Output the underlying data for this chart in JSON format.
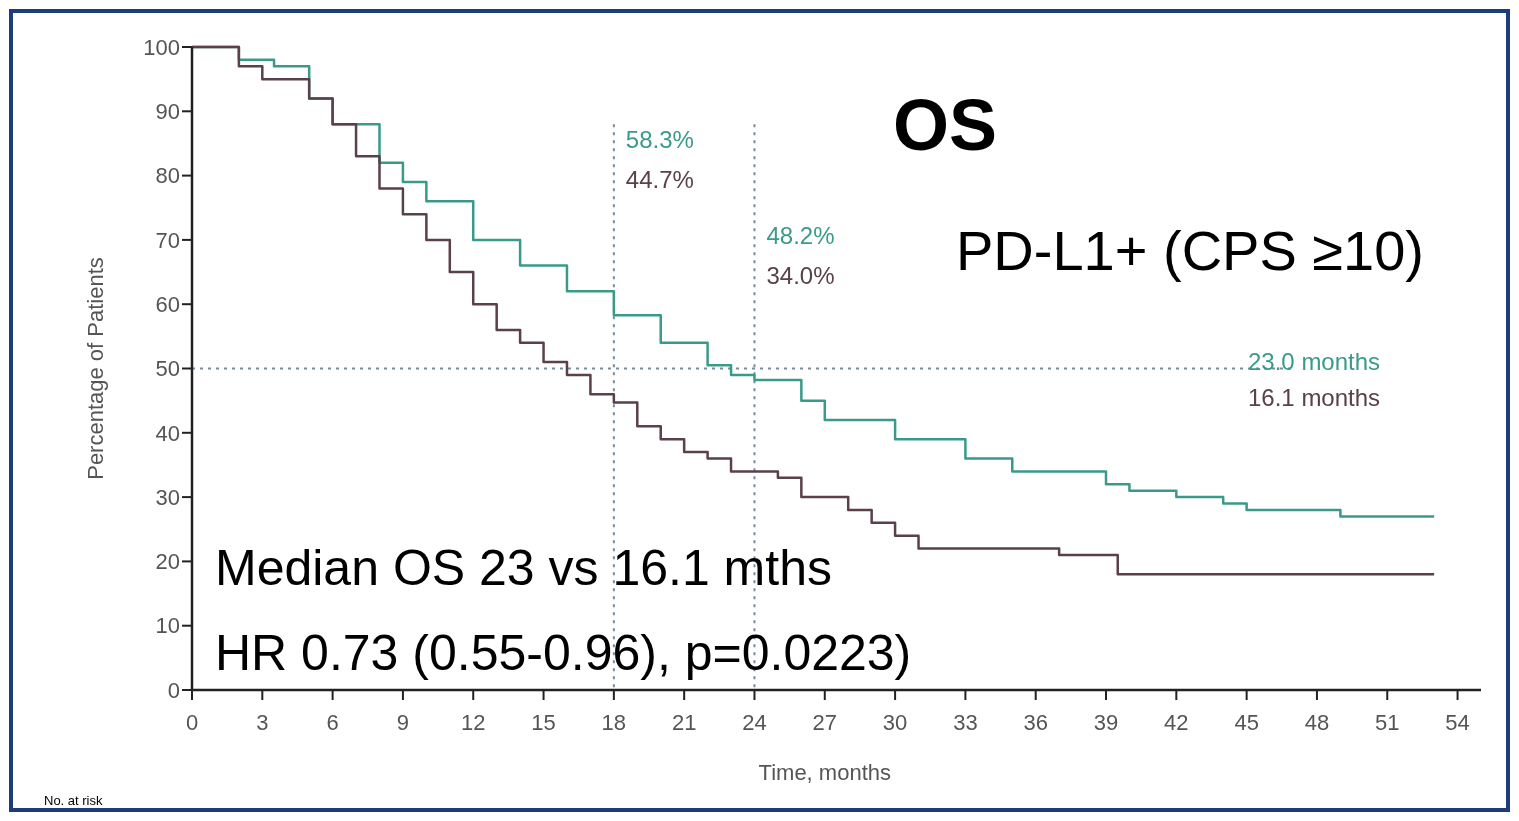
{
  "chart_data": {
    "type": "step",
    "title": "OS",
    "subtitle": "PD-L1+ (CPS ≥10)",
    "xlabel": "Time, months",
    "ylabel": "Percentage of Patients",
    "xlim": [
      0,
      55
    ],
    "xticks": [
      0,
      3,
      6,
      9,
      12,
      15,
      18,
      21,
      24,
      27,
      30,
      33,
      36,
      39,
      42,
      45,
      48,
      51,
      54
    ],
    "ylim": [
      0,
      100
    ],
    "yticks": [
      0,
      10,
      20,
      30,
      40,
      50,
      60,
      70,
      80,
      90,
      100
    ],
    "line_style": "solid",
    "series": [
      {
        "color": "#3a9a8a",
        "x": [
          0,
          2,
          3.5,
          5,
          6,
          8,
          9,
          10,
          12,
          14,
          16,
          18,
          20,
          22,
          23,
          24,
          26,
          27,
          30,
          33,
          35,
          36,
          39,
          40,
          42,
          44,
          45,
          48,
          49,
          53
        ],
        "values": [
          100,
          98,
          97,
          92,
          88,
          82,
          79,
          76,
          70,
          66,
          62,
          58.3,
          54,
          50.5,
          49,
          48.2,
          45,
          42,
          39,
          36,
          34,
          34,
          32,
          31,
          30,
          29,
          28,
          28,
          27,
          27
        ]
      },
      {
        "color": "#5a4048",
        "x": [
          0,
          2,
          3,
          5,
          6,
          7,
          8,
          9,
          10,
          11,
          12,
          13,
          14,
          15,
          16,
          17,
          18,
          19,
          20,
          21,
          22,
          23,
          24,
          25,
          26,
          28,
          29,
          30,
          31,
          36,
          37,
          39,
          39.5,
          53
        ],
        "values": [
          100,
          97,
          95,
          92,
          88,
          83,
          78,
          74,
          70,
          65,
          60,
          56,
          54,
          51,
          49,
          46,
          44.7,
          41,
          39,
          37,
          36,
          34,
          34,
          33,
          30,
          28,
          26,
          24,
          22,
          22,
          21,
          21,
          18,
          18
        ]
      }
    ],
    "ref_lines": [
      {
        "axis": "x",
        "value": 18,
        "line_style": "dotted",
        "color": "#7a8a9a"
      },
      {
        "axis": "x",
        "value": 24,
        "line_style": "dotted",
        "color": "#7a8a9a"
      },
      {
        "axis": "y",
        "value": 50,
        "line_style": "dotted",
        "color": "#7a8a9a"
      }
    ],
    "annotations": [
      "58.3%",
      "44.7%",
      "48.2%",
      "34.0%",
      "23.0 months",
      "16.1 months",
      "Median OS 23 vs 16.1 mths",
      "HR 0.73 (0.55-0.96), p=0.0223)",
      "No. at risk"
    ]
  }
}
